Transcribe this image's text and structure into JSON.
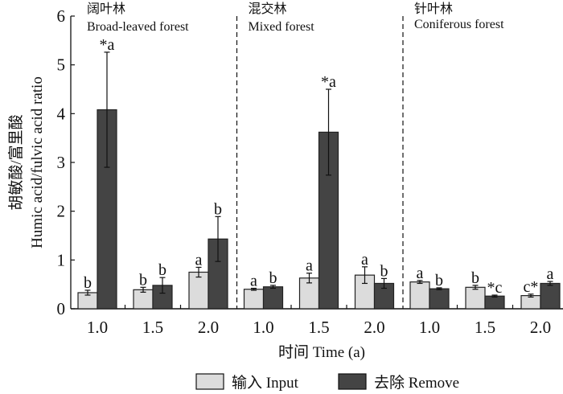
{
  "chart_data": {
    "type": "bar",
    "ylabel_cn": "胡敏酸/富里酸",
    "ylabel": "Humic acid/fulvic acid ratio",
    "xlabel": "时间 Time (a)",
    "ylim": [
      0,
      6
    ],
    "yticks": [
      "0",
      "1",
      "2",
      "3",
      "4",
      "5",
      "6"
    ],
    "legend": [
      {
        "name": "输入 Input",
        "color": "#dcdcdc"
      },
      {
        "name": "去除 Remove",
        "color": "#444444"
      }
    ],
    "legend_position": "bottom-center",
    "panels": [
      {
        "title_cn": "阔叶林",
        "title": "Broad-leaved forest",
        "categories": [
          "1.0",
          "1.5",
          "2.0"
        ],
        "input": {
          "values": [
            0.33,
            0.39,
            0.75
          ],
          "errors": [
            0.05,
            0.05,
            0.1
          ],
          "labels": [
            "b",
            "b",
            "a"
          ]
        },
        "remove": {
          "values": [
            4.08,
            0.48,
            1.43
          ],
          "errors": [
            1.18,
            0.16,
            0.46
          ],
          "labels": [
            "*a",
            "b",
            "b"
          ]
        }
      },
      {
        "title_cn": "混交林",
        "title": "Mixed forest",
        "categories": [
          "1.0",
          "1.5",
          "2.0"
        ],
        "input": {
          "values": [
            0.4,
            0.63,
            0.69
          ],
          "errors": [
            0.02,
            0.1,
            0.17
          ],
          "labels": [
            "a",
            "a",
            "a"
          ]
        },
        "remove": {
          "values": [
            0.45,
            3.62,
            0.52
          ],
          "errors": [
            0.03,
            0.88,
            0.1
          ],
          "labels": [
            "b",
            "*a",
            "b"
          ]
        }
      },
      {
        "title_cn": "针叶林",
        "title": "Coniferous forest",
        "categories": [
          "1.0",
          "1.5",
          "2.0"
        ],
        "input": {
          "values": [
            0.55,
            0.44,
            0.27
          ],
          "errors": [
            0.03,
            0.04,
            0.03
          ],
          "labels": [
            "a",
            "b",
            "c*"
          ]
        },
        "remove": {
          "values": [
            0.41,
            0.26,
            0.52
          ],
          "errors": [
            0.02,
            0.02,
            0.04
          ],
          "labels": [
            "b",
            "*c",
            "a"
          ]
        }
      }
    ]
  }
}
